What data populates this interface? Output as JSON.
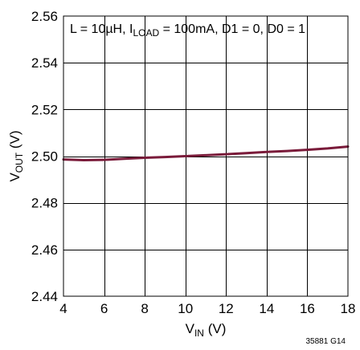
{
  "chart_data": {
    "type": "line",
    "annotation": {
      "prefix": "L = 10µH, I",
      "subscript": "LOAD",
      "suffix": " = 100mA, D1 = 0, D0 = 1"
    },
    "xlabel": {
      "main": "V",
      "subscript": "IN",
      "unit": " (V)"
    },
    "ylabel": {
      "main": "V",
      "subscript": "OUT",
      "unit": " (V)"
    },
    "xlim": [
      4,
      18
    ],
    "ylim": [
      2.44,
      2.56
    ],
    "x_ticks": [
      4,
      6,
      8,
      10,
      12,
      14,
      16,
      18
    ],
    "x_tick_labels": [
      "4",
      "6",
      "8",
      "10",
      "12",
      "14",
      "16",
      "18"
    ],
    "y_ticks": [
      2.44,
      2.46,
      2.48,
      2.5,
      2.52,
      2.54,
      2.56
    ],
    "y_tick_labels": [
      "2.44",
      "2.46",
      "2.48",
      "2.50",
      "2.52",
      "2.54",
      "2.56"
    ],
    "grid": true,
    "series": [
      {
        "color": "#7a1b3a",
        "x": [
          4,
          5,
          6,
          7,
          8,
          9,
          10,
          11,
          12,
          13,
          14,
          15,
          16,
          17,
          18
        ],
        "y": [
          2.4986,
          2.4983,
          2.4984,
          2.4989,
          2.4993,
          2.4996,
          2.5,
          2.5004,
          2.5008,
          2.5013,
          2.5018,
          2.5022,
          2.5027,
          2.5033,
          2.5041
        ]
      }
    ],
    "figure_code": "35881 G14"
  }
}
